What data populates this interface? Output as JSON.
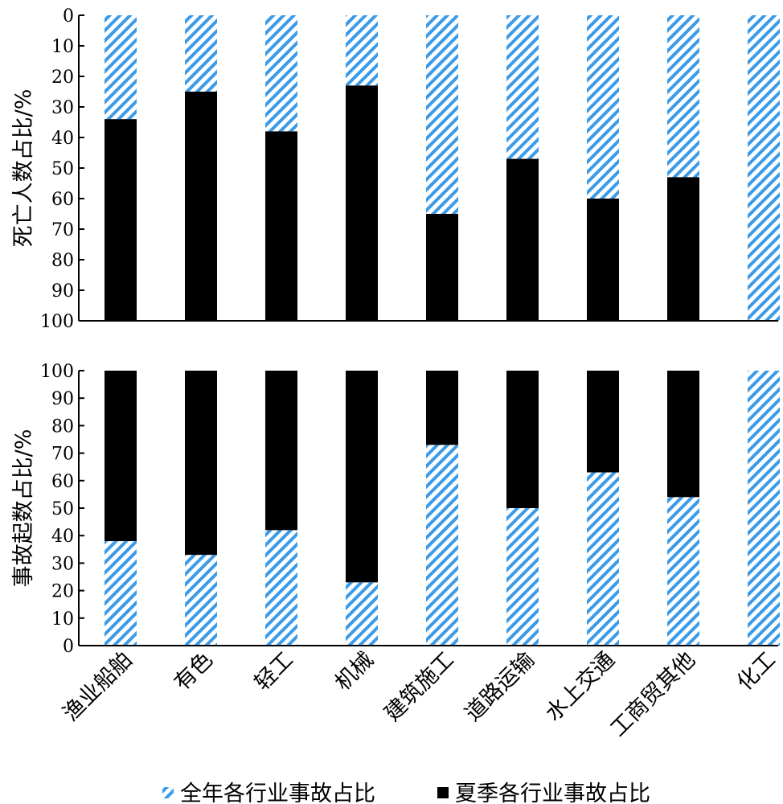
{
  "chart_data": {
    "type": "bar",
    "stacked": true,
    "categories": [
      "渔业船舶",
      "有色",
      "轻工",
      "机械",
      "建筑施工",
      "道路运输",
      "水上交通",
      "工商贸其他",
      "化工"
    ],
    "legend": {
      "placement": "bottom",
      "items": [
        "全年各行业事故占比",
        "夏季各行业事故占比"
      ]
    },
    "colors": {
      "annual": "#3b9be8",
      "summer": "#000000"
    },
    "panels": [
      {
        "ylabel": "死亡人数占比/%",
        "ylim": [
          0,
          100
        ],
        "y_inverted": true,
        "yticks": [
          "0",
          "10",
          "20",
          "30",
          "40",
          "50",
          "60",
          "70",
          "80",
          "90",
          "100"
        ],
        "series": [
          {
            "name": "全年各行业事故占比",
            "values": [
              34,
              25,
              38,
              23,
              65,
              47,
              60,
              53,
              100
            ]
          },
          {
            "name": "夏季各行业事故占比",
            "values": [
              66,
              75,
              62,
              77,
              35,
              53,
              40,
              47,
              0
            ]
          }
        ]
      },
      {
        "ylabel": "事故起数占比/%",
        "ylim": [
          0,
          100
        ],
        "y_inverted": false,
        "yticks": [
          "0",
          "10",
          "20",
          "30",
          "40",
          "50",
          "60",
          "70",
          "80",
          "90",
          "100"
        ],
        "series": [
          {
            "name": "全年各行业事故占比",
            "values": [
              38,
              33,
              42,
              23,
              73,
              50,
              63,
              54,
              100
            ]
          },
          {
            "name": "夏季各行业事故占比",
            "values": [
              62,
              67,
              58,
              77,
              27,
              50,
              37,
              46,
              0
            ]
          }
        ]
      }
    ]
  }
}
